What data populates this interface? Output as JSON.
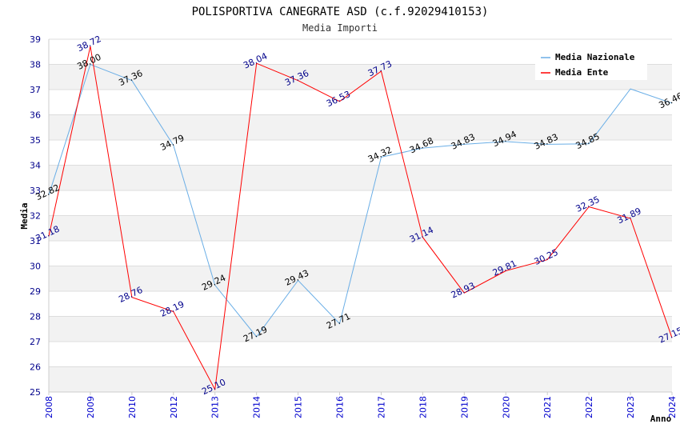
{
  "chart_data": {
    "type": "line",
    "title": "POLISPORTIVA CANEGRATE ASD (c.f.92029410153)",
    "subtitle": "Media Importi",
    "xlabel": "Anno",
    "ylabel": "Media",
    "ylim": [
      25,
      39
    ],
    "yticks": [
      "25",
      "26",
      "27",
      "28",
      "29",
      "30",
      "31",
      "32",
      "33",
      "34",
      "35",
      "36",
      "37",
      "38",
      "39"
    ],
    "categories": [
      "2008",
      "2009",
      "2010",
      "2012",
      "2013",
      "2014",
      "2015",
      "2016",
      "2017",
      "2018",
      "2019",
      "2020",
      "2021",
      "2022",
      "2023",
      "2024"
    ],
    "legend_position": "top-right",
    "series": [
      {
        "name": "Media Nazionale",
        "color": "#6aaee6",
        "label_color": "#000000",
        "values": [
          32.82,
          38.0,
          37.36,
          34.79,
          29.24,
          27.19,
          29.43,
          27.71,
          34.32,
          34.68,
          34.83,
          34.94,
          34.83,
          34.85,
          37.03,
          36.46
        ],
        "labels": [
          "32.82",
          "38.00",
          "37.36",
          "34.79",
          "29.24",
          "27.19",
          "29.43",
          "27.71",
          "34.32",
          "34.68",
          "34.83",
          "34.94",
          "34.83",
          "34.85",
          "",
          "36.46"
        ]
      },
      {
        "name": "Media Ente",
        "color": "#ff0000",
        "label_color": "#00008b",
        "values": [
          31.18,
          38.72,
          28.76,
          28.19,
          25.1,
          38.04,
          37.36,
          36.53,
          37.73,
          31.14,
          28.93,
          29.81,
          30.25,
          32.35,
          31.89,
          27.15
        ],
        "labels": [
          "31.18",
          "38.72",
          "28.76",
          "28.19",
          "25.10",
          "38.04",
          "37.36",
          "36.53",
          "37.73",
          "31.14",
          "28.93",
          "29.81",
          "30.25",
          "32.35",
          "31.89",
          "27.15"
        ]
      }
    ]
  }
}
